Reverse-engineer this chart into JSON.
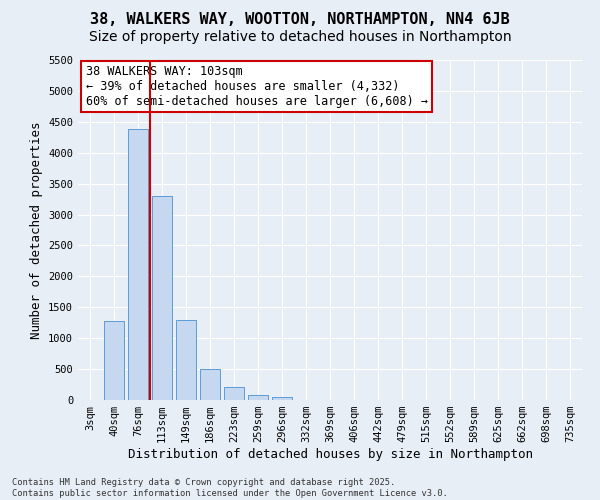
{
  "title": "38, WALKERS WAY, WOOTTON, NORTHAMPTON, NN4 6JB",
  "subtitle": "Size of property relative to detached houses in Northampton",
  "xlabel": "Distribution of detached houses by size in Northampton",
  "ylabel": "Number of detached properties",
  "categories": [
    "3sqm",
    "40sqm",
    "76sqm",
    "113sqm",
    "149sqm",
    "186sqm",
    "223sqm",
    "259sqm",
    "296sqm",
    "332sqm",
    "369sqm",
    "406sqm",
    "442sqm",
    "479sqm",
    "515sqm",
    "552sqm",
    "589sqm",
    "625sqm",
    "662sqm",
    "698sqm",
    "735sqm"
  ],
  "values": [
    0,
    1270,
    4380,
    3300,
    1290,
    500,
    215,
    80,
    50,
    0,
    0,
    0,
    0,
    0,
    0,
    0,
    0,
    0,
    0,
    0,
    0
  ],
  "bar_color": "#c5d8f0",
  "bar_edge_color": "#5b9bd5",
  "background_color": "#e8eef6",
  "grid_color": "#ffffff",
  "vline_x": 2.5,
  "vline_color": "#cc0000",
  "annotation_text": "38 WALKERS WAY: 103sqm\n← 39% of detached houses are smaller (4,332)\n60% of semi-detached houses are larger (6,608) →",
  "annotation_box_edgecolor": "#cc0000",
  "ylim": [
    0,
    5500
  ],
  "yticks": [
    0,
    500,
    1000,
    1500,
    2000,
    2500,
    3000,
    3500,
    4000,
    4500,
    5000,
    5500
  ],
  "footer_text": "Contains HM Land Registry data © Crown copyright and database right 2025.\nContains public sector information licensed under the Open Government Licence v3.0.",
  "title_fontsize": 11,
  "subtitle_fontsize": 10,
  "axis_label_fontsize": 9,
  "tick_fontsize": 7.5,
  "annotation_fontsize": 8.5
}
